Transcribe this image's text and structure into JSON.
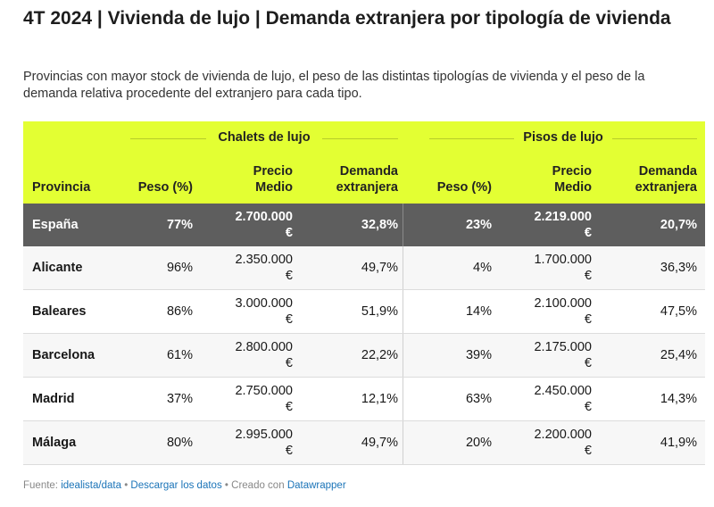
{
  "title": "4T 2024 | Vivienda de lujo | Demanda extranjera por tipología de vivienda",
  "subtitle": "Provincias con mayor stock de vivienda de lujo, el peso de las distintas tipologías de vivienda y el peso de la demanda relativa procedente del extranjero para cada tipo.",
  "colors": {
    "header_bg": "#e3ff33",
    "highlight_row_bg": "#5e5e5e",
    "link": "#1b74b8"
  },
  "chart_data": {
    "type": "table",
    "groups": [
      "Chalets de lujo",
      "Pisos de lujo"
    ],
    "columns": {
      "provincia": "Provincia",
      "peso": "Peso (%)",
      "precio_1": "Precio",
      "precio_2": "Medio",
      "demanda_1": "Demanda",
      "demanda_2": "extranjera"
    },
    "rows": [
      {
        "provincia": "España",
        "c_peso": "77%",
        "c_precio_1": "2.700.000",
        "c_precio_2": "€",
        "c_demanda": "32,8%",
        "p_peso": "23%",
        "p_precio_1": "2.219.000",
        "p_precio_2": "€",
        "p_demanda": "20,7%"
      },
      {
        "provincia": "Alicante",
        "c_peso": "96%",
        "c_precio_1": "2.350.000",
        "c_precio_2": "€",
        "c_demanda": "49,7%",
        "p_peso": "4%",
        "p_precio_1": "1.700.000",
        "p_precio_2": "€",
        "p_demanda": "36,3%"
      },
      {
        "provincia": "Baleares",
        "c_peso": "86%",
        "c_precio_1": "3.000.000",
        "c_precio_2": "€",
        "c_demanda": "51,9%",
        "p_peso": "14%",
        "p_precio_1": "2.100.000",
        "p_precio_2": "€",
        "p_demanda": "47,5%"
      },
      {
        "provincia": "Barcelona",
        "c_peso": "61%",
        "c_precio_1": "2.800.000",
        "c_precio_2": "€",
        "c_demanda": "22,2%",
        "p_peso": "39%",
        "p_precio_1": "2.175.000",
        "p_precio_2": "€",
        "p_demanda": "25,4%"
      },
      {
        "provincia": "Madrid",
        "c_peso": "37%",
        "c_precio_1": "2.750.000",
        "c_precio_2": "€",
        "c_demanda": "12,1%",
        "p_peso": "63%",
        "p_precio_1": "2.450.000",
        "p_precio_2": "€",
        "p_demanda": "14,3%"
      },
      {
        "provincia": "Málaga",
        "c_peso": "80%",
        "c_precio_1": "2.995.000",
        "c_precio_2": "€",
        "c_demanda": "49,7%",
        "p_peso": "20%",
        "p_precio_1": "2.200.000",
        "p_precio_2": "€",
        "p_demanda": "41,9%"
      }
    ]
  },
  "footer": {
    "fuente_label": "Fuente:",
    "fuente_link": "idealista/data",
    "sep": "•",
    "descargar": "Descargar los datos",
    "creado": "Creado con",
    "tool": "Datawrapper"
  }
}
